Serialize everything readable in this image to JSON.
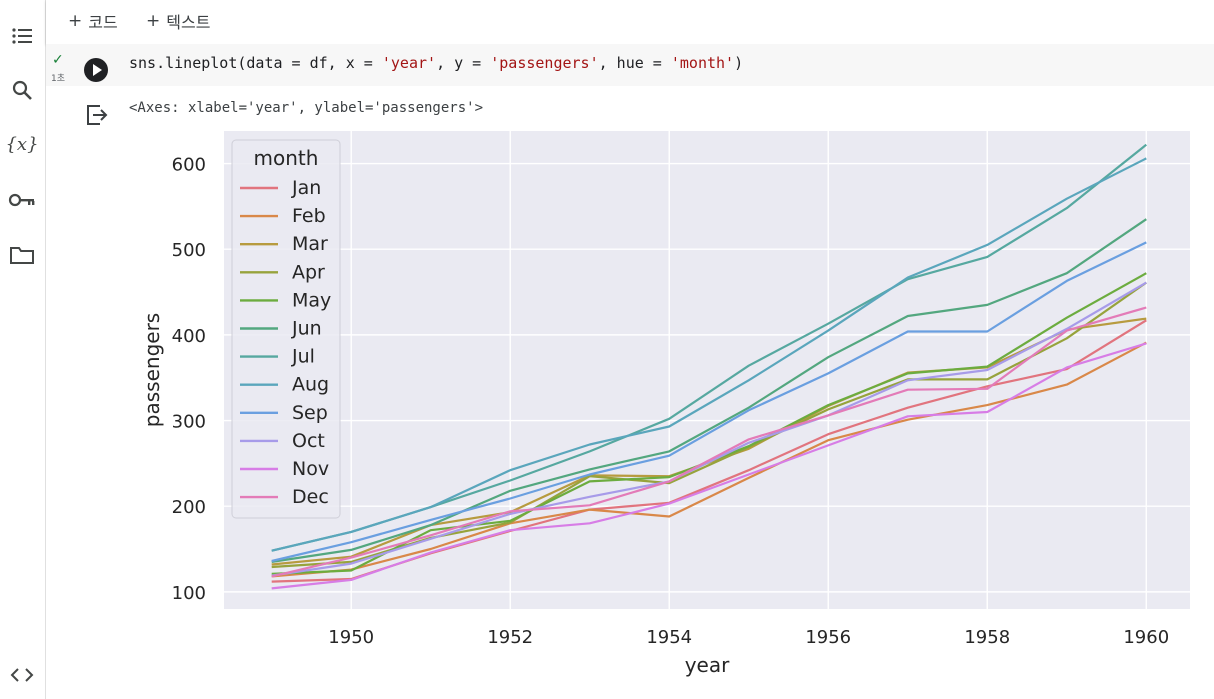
{
  "toolbar": {
    "add_code": "코드",
    "add_text": "텍스트"
  },
  "sidebar": {
    "items": [
      "table-of-contents",
      "search",
      "variables",
      "secrets",
      "files",
      "code-snippets"
    ]
  },
  "cell": {
    "code_parts": [
      "sns.lineplot(data = df, x = ",
      "'year'",
      ", y = ",
      "'passengers'",
      ", hue = ",
      "'month'",
      ")"
    ],
    "exec_time": "1초",
    "output_text": "<Axes: xlabel='year', ylabel='passengers'>"
  },
  "chart_data": {
    "type": "line",
    "xlabel": "year",
    "ylabel": "passengers",
    "legend_title": "month",
    "legend_position": "top-left",
    "xticks": [
      1950,
      1952,
      1954,
      1956,
      1958,
      1960
    ],
    "yticks": [
      100,
      200,
      300,
      400,
      500,
      600
    ],
    "xlim": [
      1948.4,
      1960.55
    ],
    "ylim": [
      80,
      638
    ],
    "x": [
      1949,
      1950,
      1951,
      1952,
      1953,
      1954,
      1955,
      1956,
      1957,
      1958,
      1959,
      1960
    ],
    "series": [
      {
        "name": "Jan",
        "color": "#e1747e",
        "values": [
          112,
          115,
          145,
          171,
          196,
          204,
          242,
          284,
          315,
          340,
          360,
          417
        ]
      },
      {
        "name": "Feb",
        "color": "#d98849",
        "values": [
          118,
          126,
          150,
          180,
          196,
          188,
          233,
          277,
          301,
          318,
          342,
          391
        ]
      },
      {
        "name": "Mar",
        "color": "#b79b3f",
        "values": [
          132,
          141,
          178,
          193,
          236,
          235,
          267,
          317,
          356,
          362,
          406,
          419
        ]
      },
      {
        "name": "Apr",
        "color": "#97a33c",
        "values": [
          129,
          135,
          163,
          181,
          235,
          227,
          269,
          313,
          348,
          348,
          396,
          461
        ]
      },
      {
        "name": "May",
        "color": "#6cac3f",
        "values": [
          121,
          125,
          172,
          183,
          229,
          234,
          270,
          318,
          355,
          363,
          420,
          472
        ]
      },
      {
        "name": "Jun",
        "color": "#53a77f",
        "values": [
          135,
          149,
          178,
          218,
          243,
          264,
          315,
          374,
          422,
          435,
          472,
          535
        ]
      },
      {
        "name": "Jul",
        "color": "#56a8a0",
        "values": [
          148,
          170,
          199,
          230,
          264,
          302,
          364,
          413,
          465,
          491,
          548,
          622
        ]
      },
      {
        "name": "Aug",
        "color": "#5aa6bc",
        "values": [
          148,
          170,
          199,
          242,
          272,
          293,
          347,
          405,
          467,
          505,
          559,
          606
        ]
      },
      {
        "name": "Sep",
        "color": "#6a9fe0",
        "values": [
          136,
          158,
          184,
          209,
          237,
          259,
          312,
          355,
          404,
          404,
          463,
          508
        ]
      },
      {
        "name": "Oct",
        "color": "#a79be9",
        "values": [
          119,
          133,
          162,
          191,
          211,
          229,
          274,
          306,
          347,
          359,
          407,
          461
        ]
      },
      {
        "name": "Nov",
        "color": "#d77de6",
        "values": [
          104,
          114,
          146,
          172,
          180,
          203,
          237,
          271,
          305,
          310,
          362,
          390
        ]
      },
      {
        "name": "Dec",
        "color": "#e37bb8",
        "values": [
          118,
          140,
          166,
          194,
          201,
          229,
          278,
          306,
          336,
          337,
          405,
          432
        ]
      }
    ]
  }
}
